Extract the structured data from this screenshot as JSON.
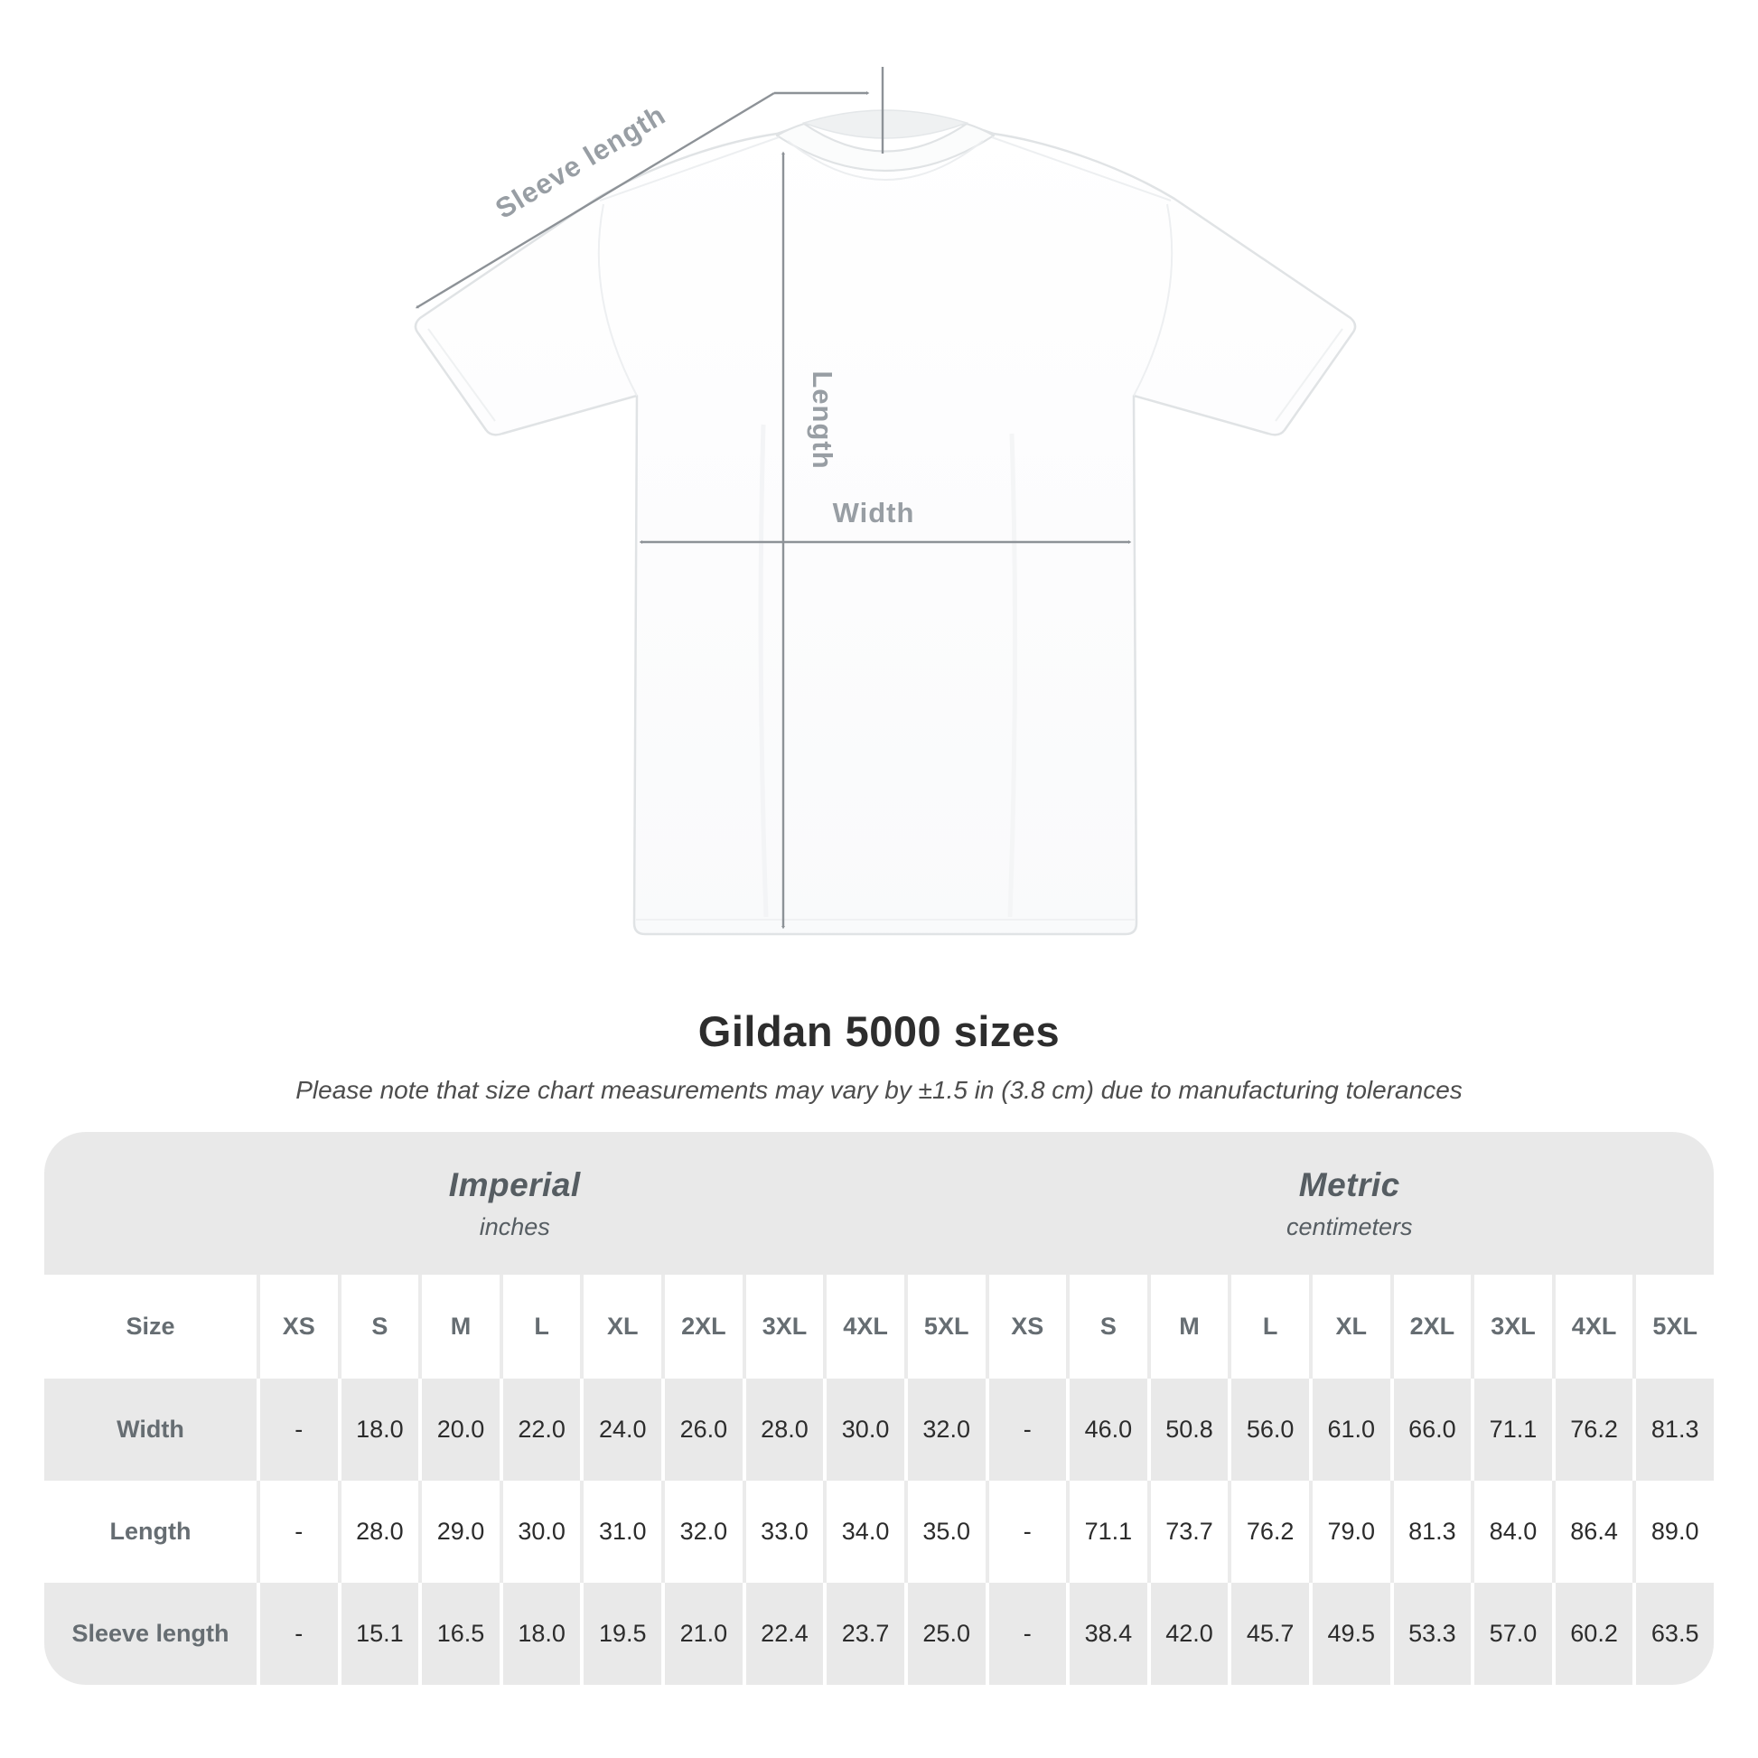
{
  "diagram": {
    "shirt_name": "gildan-5000-white-tee-front",
    "labels": {
      "sleeve_length": "Sleeve length",
      "length": "Length",
      "width": "Width"
    },
    "colors": {
      "arrow": "#8d9297",
      "label": "#989ea4",
      "shirt_outline": "#e0e3e5"
    }
  },
  "title": "Gildan 5000 sizes",
  "subtitle": "Please note that size chart measurements may vary by ±1.5 in (3.8 cm) due to manufacturing tolerances",
  "table": {
    "corner_label": "Size",
    "sections": [
      {
        "title": "Imperial",
        "unit": "inches"
      },
      {
        "title": "Metric",
        "unit": "centimeters"
      }
    ],
    "sizes": [
      "XS",
      "S",
      "M",
      "L",
      "XL",
      "2XL",
      "3XL",
      "4XL",
      "5XL"
    ],
    "rows": [
      {
        "label": "Width",
        "imperial": [
          "-",
          "18.0",
          "20.0",
          "22.0",
          "24.0",
          "26.0",
          "28.0",
          "30.0",
          "32.0"
        ],
        "metric": [
          "-",
          "46.0",
          "50.8",
          "56.0",
          "61.0",
          "66.0",
          "71.1",
          "76.2",
          "81.3"
        ]
      },
      {
        "label": "Length",
        "imperial": [
          "-",
          "28.0",
          "29.0",
          "30.0",
          "31.0",
          "32.0",
          "33.0",
          "34.0",
          "35.0"
        ],
        "metric": [
          "-",
          "71.1",
          "73.7",
          "76.2",
          "79.0",
          "81.3",
          "84.0",
          "86.4",
          "89.0"
        ]
      },
      {
        "label": "Sleeve length",
        "imperial": [
          "-",
          "15.1",
          "16.5",
          "18.0",
          "19.5",
          "21.0",
          "22.4",
          "23.7",
          "25.0"
        ],
        "metric": [
          "-",
          "38.4",
          "42.0",
          "45.7",
          "49.5",
          "53.3",
          "57.0",
          "60.2",
          "63.5"
        ]
      }
    ],
    "colors": {
      "band_bg": "#e9e9e9",
      "stripe_bg": "#e9e9e9",
      "value_text": "#2c2c2c",
      "label_text": "#666d72",
      "band_text": "#565d62"
    }
  },
  "chart_data": {
    "type": "table",
    "title": "Gildan 5000 sizes",
    "note": "Please note that size chart measurements may vary by ±1.5 in (3.8 cm) due to manufacturing tolerances",
    "sections": [
      {
        "name": "Imperial",
        "unit": "inches",
        "sizes": [
          "XS",
          "S",
          "M",
          "L",
          "XL",
          "2XL",
          "3XL",
          "4XL",
          "5XL"
        ],
        "measurements": {
          "Width": [
            null,
            18.0,
            20.0,
            22.0,
            24.0,
            26.0,
            28.0,
            30.0,
            32.0
          ],
          "Length": [
            null,
            28.0,
            29.0,
            30.0,
            31.0,
            32.0,
            33.0,
            34.0,
            35.0
          ],
          "Sleeve length": [
            null,
            15.1,
            16.5,
            18.0,
            19.5,
            21.0,
            22.4,
            23.7,
            25.0
          ]
        }
      },
      {
        "name": "Metric",
        "unit": "centimeters",
        "sizes": [
          "XS",
          "S",
          "M",
          "L",
          "XL",
          "2XL",
          "3XL",
          "4XL",
          "5XL"
        ],
        "measurements": {
          "Width": [
            null,
            46.0,
            50.8,
            56.0,
            61.0,
            66.0,
            71.1,
            76.2,
            81.3
          ],
          "Length": [
            null,
            71.1,
            73.7,
            76.2,
            79.0,
            81.3,
            84.0,
            86.4,
            89.0
          ],
          "Sleeve length": [
            null,
            38.4,
            42.0,
            45.7,
            49.5,
            53.3,
            57.0,
            60.2,
            63.5
          ]
        }
      }
    ]
  }
}
